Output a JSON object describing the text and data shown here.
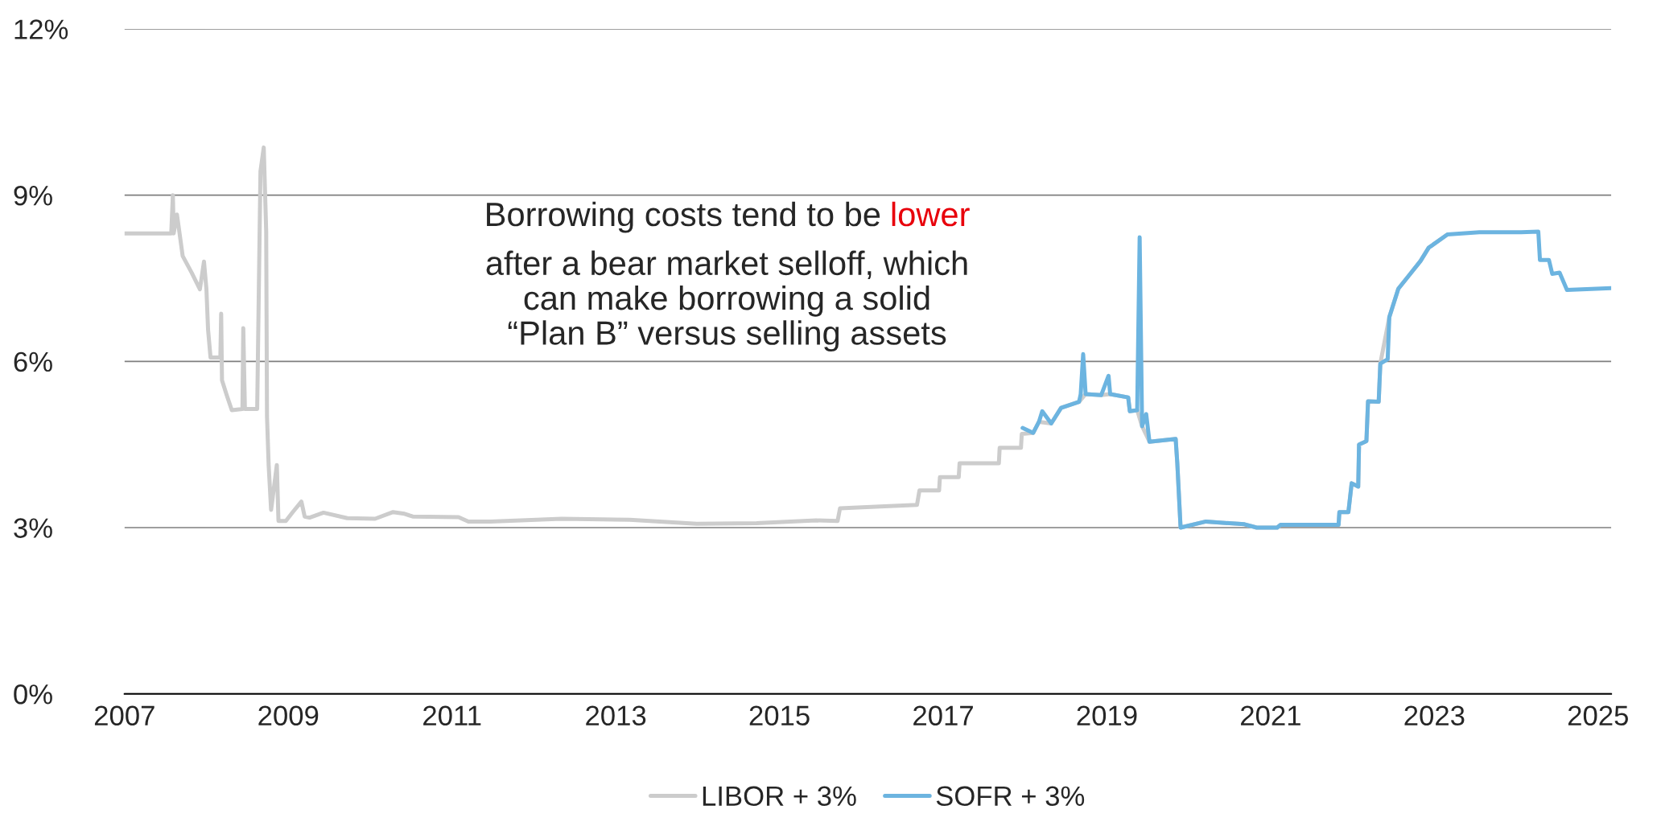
{
  "chart_data": {
    "type": "line",
    "annotations": [
      "Borrowing costs tend to be ",
      "lower",
      "after a bear market selloff, which\ncan make borrowing a solid\n“Plan B” versus selling assets"
    ],
    "xlim": [
      2007,
      2025.16
    ],
    "xticks": [
      2007,
      2009,
      2011,
      2013,
      2015,
      2017,
      2019,
      2021,
      2023,
      2025
    ],
    "ylim": [
      0,
      12
    ],
    "yticks": [
      {
        "value": 0,
        "label": "0%"
      },
      {
        "value": 3,
        "label": "3%"
      },
      {
        "value": 6,
        "label": "6%"
      },
      {
        "value": 9,
        "label": "9%"
      },
      {
        "value": 12,
        "label": "12%"
      }
    ],
    "grid": "y",
    "legend": "bottom",
    "marker": "none",
    "line_style": "solid",
    "series": [
      {
        "name": "LIBOR + 3%",
        "color": "#cccccc",
        "x": [
          2007.0,
          2007.57,
          2007.59,
          2007.6,
          2007.64,
          2007.71,
          2007.82,
          2007.92,
          2007.97,
          2008.0,
          2008.02,
          2008.05,
          2008.17,
          2008.18,
          2008.19,
          2008.25,
          2008.31,
          2008.44,
          2008.45,
          2008.47,
          2008.62,
          2008.66,
          2008.7,
          2008.73,
          2008.74,
          2008.76,
          2008.79,
          2008.86,
          2008.88,
          2008.97,
          2009.06,
          2009.16,
          2009.2,
          2009.26,
          2009.43,
          2009.72,
          2010.06,
          2010.28,
          2010.42,
          2010.52,
          2011.08,
          2011.2,
          2011.47,
          2012.34,
          2013.17,
          2013.99,
          2014.72,
          2015.45,
          2015.71,
          2015.74,
          2016.23,
          2016.68,
          2016.71,
          2016.95,
          2016.96,
          2017.19,
          2017.2,
          2017.68,
          2017.69,
          2017.95,
          2017.96,
          2018.1,
          2018.17,
          2018.32,
          2018.44,
          2018.66,
          2018.74,
          2018.93,
          2019.04,
          2019.26,
          2019.28,
          2019.37,
          2019.43,
          2019.52,
          2019.84,
          2019.86,
          2019.9,
          2020.21,
          2020.68,
          2020.83,
          2021.08,
          2021.12,
          2021.83,
          2021.84,
          2021.95,
          2021.99,
          2022.07,
          2022.08,
          2022.17,
          2022.19,
          2022.32,
          2022.34,
          2022.45,
          2022.56,
          2022.69,
          2022.83,
          2022.93,
          2023.16
        ],
        "values": [
          8.31,
          8.31,
          9.0,
          8.31,
          8.65,
          7.9,
          7.6,
          7.3,
          7.8,
          7.3,
          6.57,
          6.07,
          6.07,
          6.86,
          5.66,
          5.38,
          5.12,
          5.14,
          6.6,
          5.14,
          5.14,
          9.43,
          9.86,
          8.35,
          5.0,
          4.13,
          3.32,
          4.13,
          3.12,
          3.12,
          3.29,
          3.47,
          3.2,
          3.18,
          3.27,
          3.17,
          3.16,
          3.28,
          3.25,
          3.2,
          3.19,
          3.11,
          3.11,
          3.16,
          3.14,
          3.07,
          3.08,
          3.13,
          3.12,
          3.35,
          3.38,
          3.41,
          3.67,
          3.67,
          3.91,
          3.91,
          4.16,
          4.16,
          4.44,
          4.44,
          4.69,
          4.71,
          4.91,
          4.88,
          5.16,
          5.27,
          5.41,
          5.39,
          5.41,
          5.35,
          5.1,
          5.12,
          4.83,
          4.55,
          4.6,
          4.16,
          3.0,
          3.11,
          3.06,
          3.0,
          3.0,
          3.05,
          3.05,
          3.28,
          3.28,
          3.8,
          3.74,
          4.5,
          4.56,
          5.28,
          5.27,
          5.96,
          6.8,
          7.31,
          7.55,
          7.81,
          8.05,
          8.29
        ]
      },
      {
        "name": "SOFR + 3%",
        "color": "#6cb4e0",
        "x": [
          2017.97,
          2018.1,
          2018.17,
          2018.21,
          2018.32,
          2018.44,
          2018.66,
          2018.68,
          2018.71,
          2018.74,
          2018.93,
          2019.02,
          2019.04,
          2019.26,
          2019.28,
          2019.37,
          2019.4,
          2019.43,
          2019.48,
          2019.52,
          2019.84,
          2019.86,
          2019.9,
          2020.21,
          2020.68,
          2020.83,
          2021.08,
          2021.12,
          2021.83,
          2021.84,
          2021.95,
          2021.99,
          2022.07,
          2022.08,
          2022.17,
          2022.19,
          2022.32,
          2022.34,
          2022.43,
          2022.45,
          2022.56,
          2022.69,
          2022.83,
          2022.93,
          2023.16,
          2023.55,
          2024.06,
          2024.27,
          2024.29,
          2024.4,
          2024.44,
          2024.53,
          2024.62,
          2025.16
        ],
        "values": [
          4.8,
          4.71,
          4.91,
          5.1,
          4.88,
          5.16,
          5.27,
          5.41,
          6.13,
          5.41,
          5.39,
          5.74,
          5.41,
          5.35,
          5.1,
          5.12,
          8.24,
          4.83,
          5.05,
          4.55,
          4.6,
          4.16,
          3.0,
          3.11,
          3.06,
          3.0,
          3.0,
          3.05,
          3.05,
          3.28,
          3.28,
          3.8,
          3.74,
          4.5,
          4.56,
          5.28,
          5.27,
          5.96,
          6.04,
          6.8,
          7.31,
          7.55,
          7.81,
          8.05,
          8.29,
          8.33,
          8.33,
          8.34,
          7.83,
          7.83,
          7.58,
          7.6,
          7.29,
          7.32
        ]
      }
    ]
  }
}
